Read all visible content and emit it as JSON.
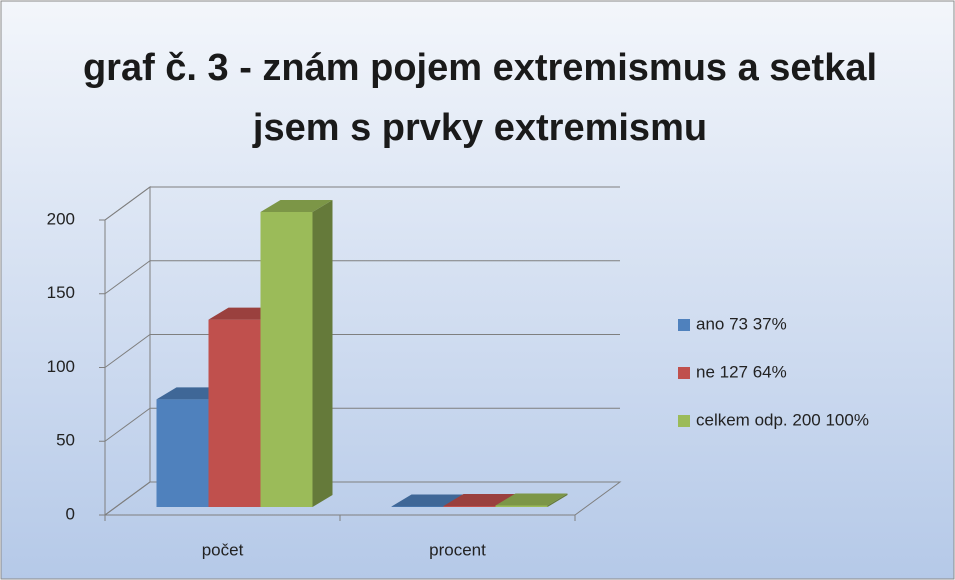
{
  "chart_data": {
    "type": "bar3d",
    "title": "graf č. 3 - znám pojem extremismus a setkal jsem s prvky extremismu",
    "categories": [
      "počet",
      "procent"
    ],
    "series": [
      {
        "name": "ano 73 37%",
        "color": "#4f81bd",
        "values": [
          73,
          0.37
        ]
      },
      {
        "name": "ne 127 64%",
        "color": "#c0504d",
        "values": [
          127,
          0.64
        ]
      },
      {
        "name": "celkem odp. 200 100%",
        "color": "#9bbb59",
        "values": [
          200,
          1
        ]
      }
    ],
    "ylim": [
      0,
      200
    ],
    "yticks": [
      0,
      50,
      100,
      150,
      200
    ],
    "grid": true,
    "legend": "right"
  }
}
